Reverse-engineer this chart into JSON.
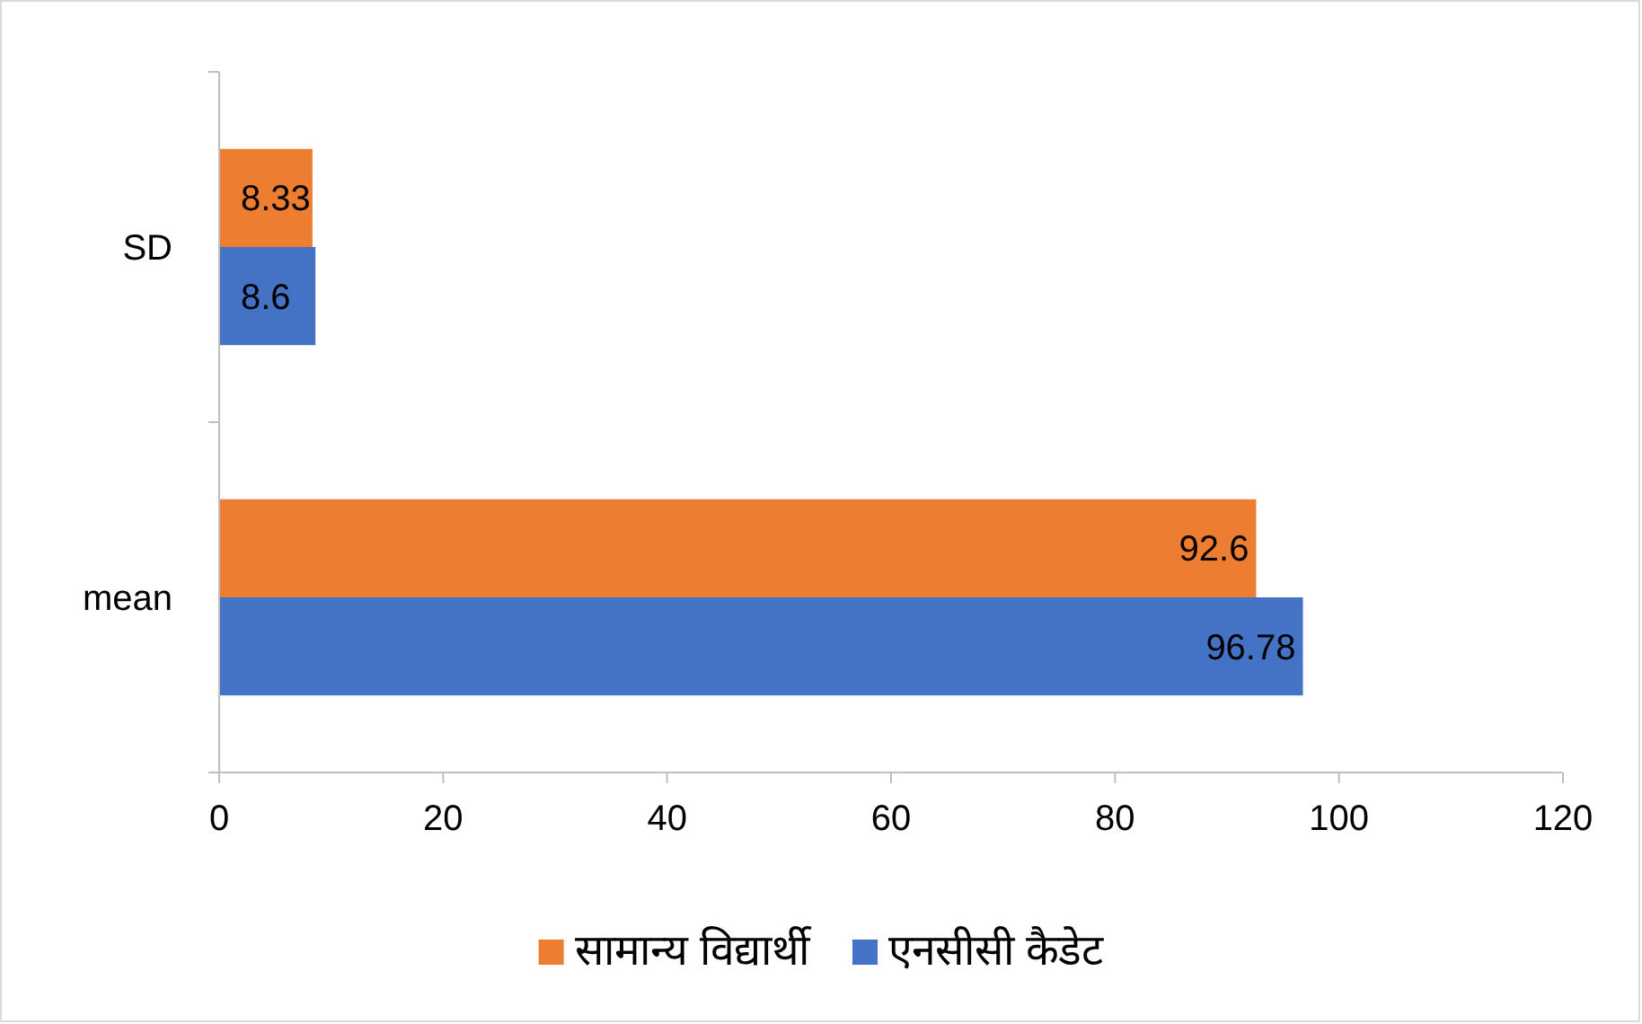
{
  "chart_data": {
    "type": "bar",
    "orientation": "horizontal",
    "categories": [
      "SD",
      "mean"
    ],
    "series": [
      {
        "name": "सामान्य विद्यार्थी",
        "color": "#ed7d31",
        "values": [
          8.33,
          92.6
        ]
      },
      {
        "name": "एनसीसी कैडेट",
        "color": "#4472c4",
        "values": [
          8.6,
          96.78
        ]
      }
    ],
    "xlim": [
      0,
      120
    ],
    "xticks": [
      0,
      20,
      40,
      60,
      80,
      100,
      120
    ],
    "data_labels": true,
    "grid": false,
    "legend": "bottom"
  }
}
